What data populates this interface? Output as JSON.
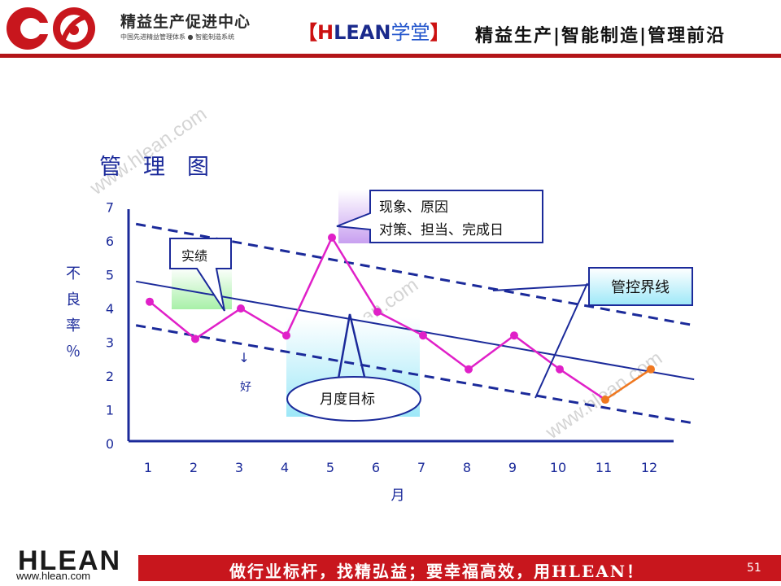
{
  "header": {
    "org_name": "精益生产促进中心",
    "org_sub": "中国先进精益管理体系 ● 智能制造系统",
    "academy_open": "【",
    "academy_h": "H",
    "academy_rest": "LEAN",
    "academy_cn": "学堂",
    "academy_close": "】",
    "tagline": "精益生产|智能制造|管理前沿"
  },
  "footer": {
    "logo": "HLEAN",
    "url": "www.hlean.com",
    "slogan": "做行业标杆，找精弘益；要幸福高效，用HLEAN！",
    "page": "51"
  },
  "watermark": "www.hlean.com",
  "chart_data": {
    "type": "line",
    "title": "管　理　图",
    "xlabel": "月",
    "ylabel_chars": [
      "不",
      "良",
      "率",
      "％"
    ],
    "x": [
      1,
      2,
      3,
      4,
      5,
      6,
      7,
      8,
      9,
      10,
      11,
      12
    ],
    "x_ticks": [
      "1",
      "2",
      "3",
      "4",
      "5",
      "6",
      "7",
      "8",
      "9",
      "10",
      "11",
      "12"
    ],
    "y_ticks": [
      "0",
      "1",
      "2",
      "3",
      "4",
      "5",
      "6",
      "7"
    ],
    "ylim": [
      0,
      7
    ],
    "series": [
      {
        "values": [
          4.2,
          3.1,
          4.0,
          3.2,
          6.1,
          3.9,
          3.2,
          2.2,
          3.2,
          2.2,
          1.3,
          2.2
        ],
        "color": "#e020c8",
        "last_segment_color": "#f07820"
      }
    ],
    "target_line": {
      "start": [
        0.7,
        4.8
      ],
      "end": [
        12.95,
        1.9
      ],
      "color": "#1b2a9a"
    },
    "control_limits": {
      "upper": {
        "start": [
          0.7,
          6.5
        ],
        "end": [
          12.95,
          3.5
        ]
      },
      "lower": {
        "start": [
          0.7,
          3.5
        ],
        "end": [
          12.95,
          0.6
        ]
      },
      "color": "#1b2a9a",
      "style": "dashed"
    },
    "annotations": {
      "actual": "实绩",
      "better_arrow": "↓",
      "better": "好",
      "reason_line1": "现象、原因",
      "reason_line2": "对策、担当、完成日",
      "monthly_target": "月度目标",
      "control_limit": "管控界线"
    },
    "grid": false,
    "legend": "none"
  }
}
